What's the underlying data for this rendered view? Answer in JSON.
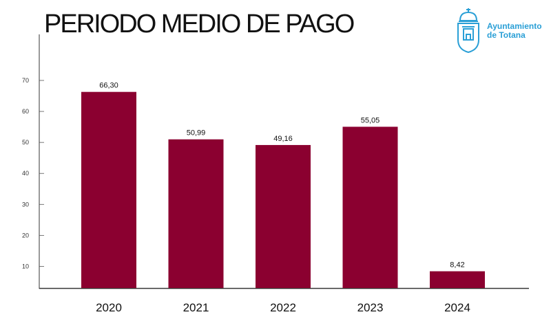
{
  "chart_data": {
    "type": "bar",
    "title": "PERIODO MEDIO DE PAGO",
    "categories": [
      "2020",
      "2021",
      "2022",
      "2023",
      "2024"
    ],
    "values": [
      66.3,
      50.99,
      49.16,
      55.05,
      8.42
    ],
    "value_labels": [
      "66,30",
      "50,99",
      "49,16",
      "55,05",
      "8,42"
    ],
    "yticks": [
      "10",
      "20",
      "30",
      "40",
      "50",
      "60",
      "70"
    ],
    "ylim": [
      3,
      70
    ],
    "grid": false,
    "bar_color": "#8b0030"
  },
  "logo": {
    "line1": "Ayuntamiento",
    "line2": "de Totana",
    "color": "#2a9fd6"
  }
}
